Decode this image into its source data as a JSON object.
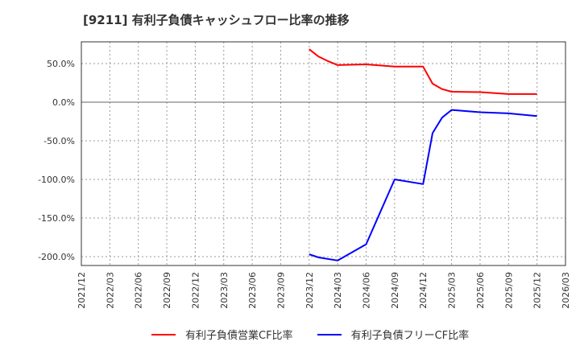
{
  "title": "[9211]  有利子負債キャッシュフロー比率の推移",
  "legend": [
    {
      "label": "有利子負債営業CF比率",
      "color": "#ff0000"
    },
    {
      "label": "有利子負債フリーCF比率",
      "color": "#0000ff"
    }
  ],
  "chart_data": {
    "type": "line",
    "title": "[9211]  有利子負債キャッシュフロー比率の推移",
    "xlabel": "",
    "ylabel": "",
    "ylim": [
      -212,
      78
    ],
    "yticks": [
      "50.0%",
      "0.0%",
      "-50.0%",
      "-100.0%",
      "-150.0%",
      "-200.0%"
    ],
    "ytick_values": [
      50,
      0,
      -50,
      -100,
      -150,
      -200
    ],
    "xticks": [
      "2021/12",
      "2022/03",
      "2022/06",
      "2022/09",
      "2022/12",
      "2023/03",
      "2023/06",
      "2023/09",
      "2023/12",
      "2024/03",
      "2024/06",
      "2024/09",
      "2024/12",
      "2025/03",
      "2025/06",
      "2025/09",
      "2025/12",
      "2026/03"
    ],
    "grid": true,
    "legend_position": "bottom",
    "series": [
      {
        "name": "有利子負債営業CF比率",
        "color": "#ff0000",
        "x": [
          "2023/12",
          "2024/01",
          "2024/02",
          "2024/03",
          "2024/06",
          "2024/09",
          "2024/12",
          "2025/01",
          "2025/02",
          "2025/03",
          "2025/06",
          "2025/09",
          "2025/12"
        ],
        "values": [
          68.5,
          59.0,
          53.0,
          48.0,
          49.0,
          46.0,
          46.0,
          24.0,
          17.0,
          13.5,
          13.0,
          10.5,
          10.5
        ]
      },
      {
        "name": "有利子負債フリーCF比率",
        "color": "#0000ff",
        "x": [
          "2023/12",
          "2024/01",
          "2024/03",
          "2024/06",
          "2024/09",
          "2024/12",
          "2025/01",
          "2025/02",
          "2025/03",
          "2025/06",
          "2025/09",
          "2025/12"
        ],
        "values": [
          -197.0,
          -201.0,
          -205.0,
          -184.0,
          -100.0,
          -106.0,
          -40.0,
          -20.0,
          -10.0,
          -13.0,
          -14.5,
          -18.0
        ]
      }
    ]
  }
}
